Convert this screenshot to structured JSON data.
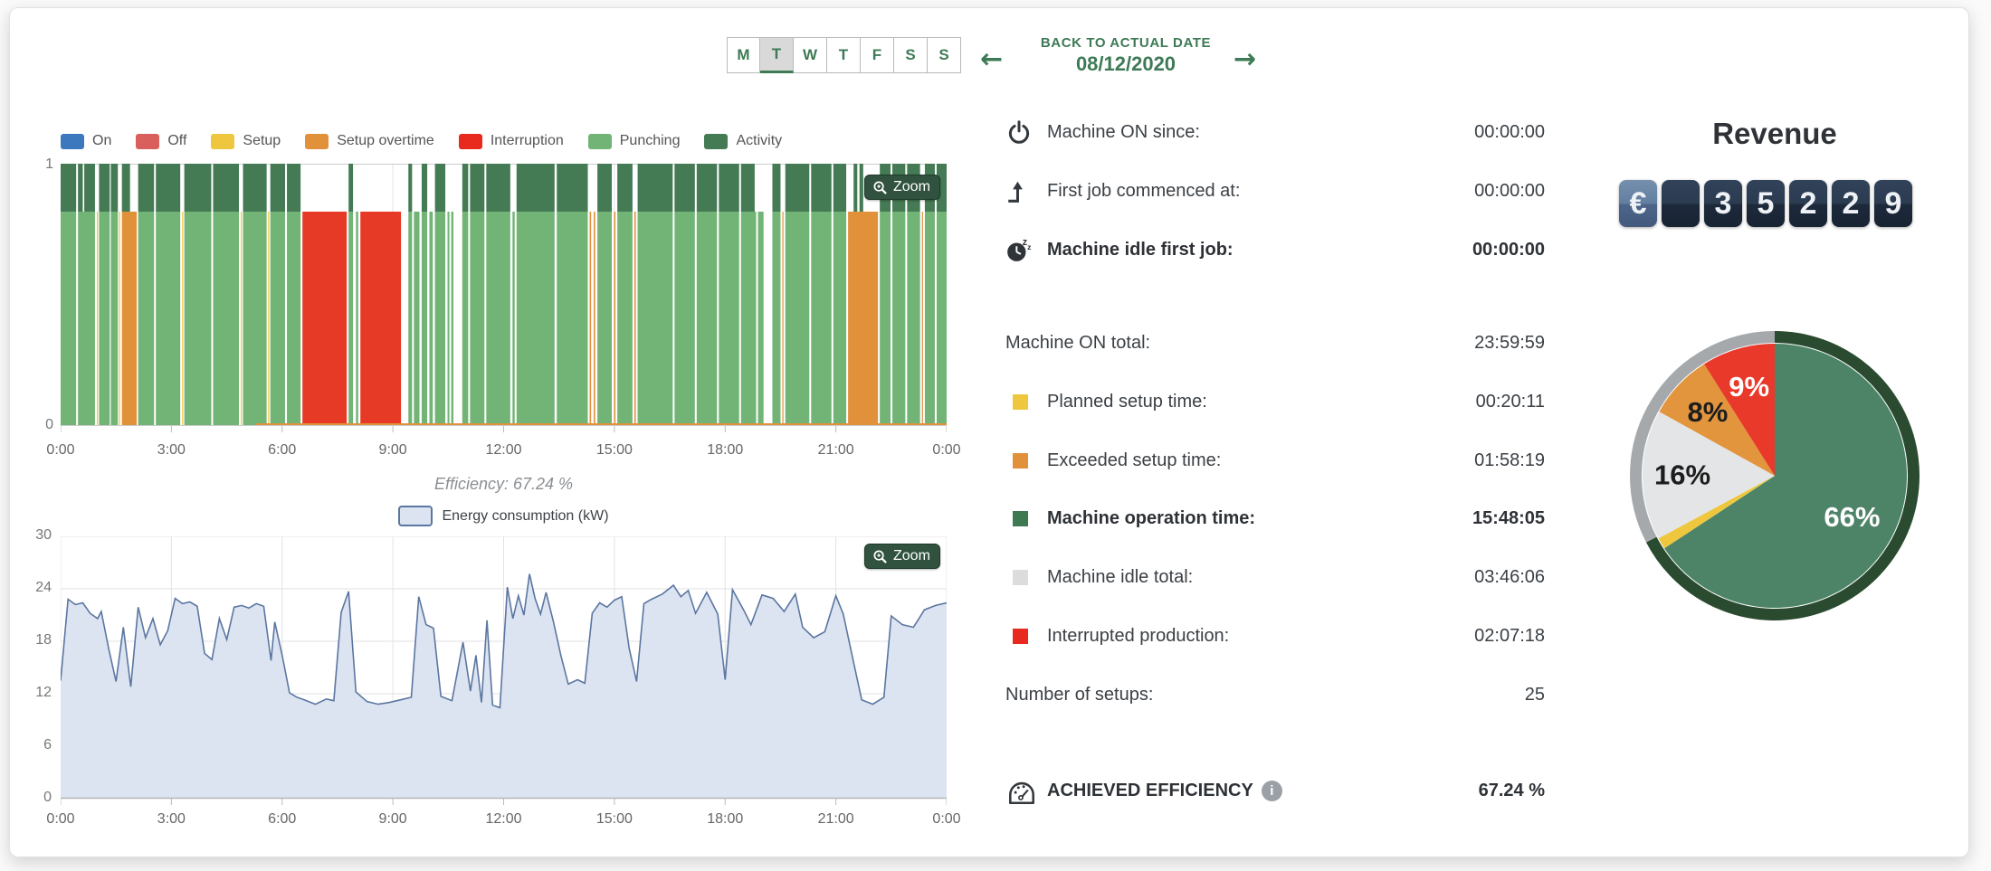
{
  "header": {
    "days": [
      "M",
      "T",
      "W",
      "T",
      "F",
      "S",
      "S"
    ],
    "selected_day_index": 1,
    "back_label": "BACK TO ACTUAL DATE",
    "date": "08/12/2020",
    "prev_arrow": "←",
    "next_arrow": "→"
  },
  "stats": {
    "rows": [
      {
        "icon": "power",
        "label": "Machine ON since:",
        "value": "00:00:00",
        "bold": false
      },
      {
        "icon": "first-job",
        "label": "First job commenced at:",
        "value": "00:00:00",
        "bold": false
      },
      {
        "icon": "idle-clock",
        "label": "Machine idle first job:",
        "value": "00:00:00",
        "bold": true
      },
      {
        "label": "Machine ON total:",
        "value": "23:59:59",
        "bold": false
      },
      {
        "swatch": "#eec73e",
        "label": "Planned setup time:",
        "value": "00:20:11",
        "bold": false
      },
      {
        "swatch": "#e2913b",
        "label": "Exceeded setup time:",
        "value": "01:58:19",
        "bold": false
      },
      {
        "swatch": "#3d7a52",
        "label": "Machine operation time:",
        "value": "15:48:05",
        "bold": true
      },
      {
        "swatch": "#dcdcdc",
        "label": "Machine idle total:",
        "value": "03:46:06",
        "bold": false
      },
      {
        "swatch": "#e8291d",
        "label": "Interrupted production:",
        "value": "02:07:18",
        "bold": false
      },
      {
        "label": "Number of setups:",
        "value": "25",
        "bold": false
      },
      {
        "icon": "gauge",
        "label": "ACHIEVED EFFICIENCY",
        "value": "67.24 %",
        "bold": true,
        "info": true
      }
    ]
  },
  "revenue": {
    "title": "Revenue",
    "tiles": [
      "€",
      "",
      "3",
      "5",
      "2",
      "2",
      "9"
    ]
  },
  "chart_data": [
    {
      "type": "timeline",
      "name": "machine-activity-timeline",
      "y_labels": [
        "1",
        "0"
      ],
      "x_ticks": {
        "hours": [
          0,
          3,
          6,
          9,
          12,
          15,
          18,
          21,
          24
        ],
        "labels": [
          "0:00",
          "3:00",
          "6:00",
          "9:00",
          "12:00",
          "15:00",
          "18:00",
          "21:00",
          "0:00"
        ]
      },
      "legend": [
        {
          "name": "On",
          "color": "#3d78bf"
        },
        {
          "name": "Off",
          "color": "#d95f5c"
        },
        {
          "name": "Setup",
          "color": "#eec73e"
        },
        {
          "name": "Setup overtime",
          "color": "#e2913b"
        },
        {
          "name": "Interruption",
          "color": "#e8291d"
        },
        {
          "name": "Punching",
          "color": "#72b376"
        },
        {
          "name": "Activity",
          "color": "#447a54"
        }
      ],
      "palette": {
        "p": "#72b376",
        "y": "#eec73e",
        "o": "#e2913b",
        "r": "#e63a26",
        "activity": "#447a54"
      },
      "zoom_label": "Zoom",
      "efficiency_caption": "Efficiency: 67.24 %",
      "activity_segments": [
        [
          0.0,
          0.42
        ],
        [
          0.47,
          0.6
        ],
        [
          0.64,
          0.93
        ],
        [
          1.04,
          1.33
        ],
        [
          1.36,
          1.55
        ],
        [
          1.66,
          1.88
        ],
        [
          2.1,
          2.53
        ],
        [
          2.58,
          3.24
        ],
        [
          3.35,
          4.08
        ],
        [
          4.13,
          4.83
        ],
        [
          4.94,
          5.58
        ],
        [
          5.68,
          6.08
        ],
        [
          6.13,
          6.5
        ],
        [
          7.8,
          7.92
        ],
        [
          9.42,
          9.52
        ],
        [
          9.78,
          9.93
        ],
        [
          10.14,
          10.42
        ],
        [
          10.88,
          11.04
        ],
        [
          11.09,
          11.48
        ],
        [
          11.53,
          12.18
        ],
        [
          12.35,
          13.38
        ],
        [
          13.44,
          14.28
        ],
        [
          14.54,
          14.93
        ],
        [
          15.08,
          15.49
        ],
        [
          15.63,
          16.58
        ],
        [
          16.63,
          17.18
        ],
        [
          17.23,
          17.78
        ],
        [
          17.83,
          18.38
        ],
        [
          18.43,
          18.8
        ],
        [
          19.28,
          19.5
        ],
        [
          19.63,
          20.28
        ],
        [
          20.33,
          20.88
        ],
        [
          20.93,
          21.28
        ],
        [
          21.48,
          21.58
        ],
        [
          21.64,
          21.74
        ],
        [
          22.19,
          22.48
        ],
        [
          22.53,
          22.88
        ],
        [
          22.93,
          23.28
        ],
        [
          23.41,
          23.68
        ],
        [
          23.73,
          24.0
        ]
      ],
      "bars": [
        [
          0.0,
          0.42,
          "p"
        ],
        [
          0.47,
          0.93,
          "p"
        ],
        [
          0.98,
          1.01,
          "y"
        ],
        [
          1.04,
          1.33,
          "p"
        ],
        [
          1.36,
          1.55,
          "p"
        ],
        [
          1.58,
          1.61,
          "y"
        ],
        [
          1.66,
          2.06,
          "o"
        ],
        [
          2.1,
          2.53,
          "p"
        ],
        [
          2.58,
          3.24,
          "p"
        ],
        [
          3.29,
          3.31,
          "y"
        ],
        [
          3.35,
          4.08,
          "p"
        ],
        [
          4.13,
          4.83,
          "p"
        ],
        [
          4.88,
          4.9,
          "y"
        ],
        [
          4.94,
          5.58,
          "p"
        ],
        [
          5.62,
          5.64,
          "y"
        ],
        [
          5.68,
          6.08,
          "p"
        ],
        [
          6.13,
          6.5,
          "p"
        ],
        [
          6.55,
          7.75,
          "r"
        ],
        [
          7.8,
          7.92,
          "p"
        ],
        [
          8.0,
          8.06,
          "p"
        ],
        [
          8.12,
          9.22,
          "r"
        ],
        [
          9.42,
          9.52,
          "p"
        ],
        [
          9.57,
          9.72,
          "p"
        ],
        [
          9.78,
          9.93,
          "p"
        ],
        [
          9.99,
          10.08,
          "p"
        ],
        [
          10.14,
          10.42,
          "p"
        ],
        [
          10.48,
          10.53,
          "p"
        ],
        [
          10.58,
          10.64,
          "p"
        ],
        [
          10.88,
          11.04,
          "p"
        ],
        [
          11.09,
          11.48,
          "p"
        ],
        [
          11.53,
          12.18,
          "p"
        ],
        [
          12.24,
          12.3,
          "p"
        ],
        [
          12.35,
          13.38,
          "p"
        ],
        [
          13.44,
          14.28,
          "p"
        ],
        [
          14.33,
          14.37,
          "o"
        ],
        [
          14.44,
          14.48,
          "o"
        ],
        [
          14.54,
          14.93,
          "p"
        ],
        [
          14.99,
          15.03,
          "o"
        ],
        [
          15.08,
          15.49,
          "p"
        ],
        [
          15.54,
          15.58,
          "o"
        ],
        [
          15.63,
          16.58,
          "p"
        ],
        [
          16.63,
          17.18,
          "p"
        ],
        [
          17.23,
          17.78,
          "p"
        ],
        [
          17.83,
          18.38,
          "p"
        ],
        [
          18.43,
          18.84,
          "p"
        ],
        [
          18.89,
          19.04,
          "p"
        ],
        [
          19.28,
          19.5,
          "p"
        ],
        [
          19.55,
          19.58,
          "o"
        ],
        [
          19.63,
          20.28,
          "p"
        ],
        [
          20.33,
          20.88,
          "p"
        ],
        [
          20.93,
          21.28,
          "p"
        ],
        [
          21.33,
          22.14,
          "o"
        ],
        [
          22.19,
          22.48,
          "p"
        ],
        [
          22.53,
          22.88,
          "p"
        ],
        [
          22.93,
          23.28,
          "p"
        ],
        [
          23.33,
          23.36,
          "o"
        ],
        [
          23.41,
          23.68,
          "p"
        ],
        [
          23.73,
          24.0,
          "p"
        ]
      ],
      "overtime_baseline": [
        5.3,
        24.0
      ]
    },
    {
      "type": "area",
      "name": "energy-consumption",
      "legend_label": "Energy consumption (kW)",
      "ylim": [
        0,
        30
      ],
      "y_ticks": [
        30,
        24,
        18,
        12,
        6,
        0
      ],
      "x_ticks": {
        "hours": [
          0,
          3,
          6,
          9,
          12,
          15,
          18,
          21,
          24
        ],
        "labels": [
          "0:00",
          "3:00",
          "6:00",
          "9:00",
          "12:00",
          "15:00",
          "18:00",
          "21:00",
          "0:00"
        ]
      },
      "fill": "#dce4f2",
      "stroke": "#5b76a0",
      "zoom_label": "Zoom",
      "points": [
        [
          0,
          13.5
        ],
        [
          0.2,
          22.8
        ],
        [
          0.4,
          22.2
        ],
        [
          0.6,
          22.4
        ],
        [
          0.8,
          21.2
        ],
        [
          1.0,
          20.6
        ],
        [
          1.1,
          21.4
        ],
        [
          1.3,
          17.2
        ],
        [
          1.5,
          13.4
        ],
        [
          1.7,
          19.6
        ],
        [
          1.9,
          12.8
        ],
        [
          2.1,
          21.9
        ],
        [
          2.3,
          18.4
        ],
        [
          2.5,
          20.6
        ],
        [
          2.7,
          17.6
        ],
        [
          2.9,
          19.2
        ],
        [
          3.1,
          22.9
        ],
        [
          3.3,
          22.3
        ],
        [
          3.5,
          22.5
        ],
        [
          3.7,
          22.0
        ],
        [
          3.9,
          16.6
        ],
        [
          4.1,
          15.9
        ],
        [
          4.3,
          20.6
        ],
        [
          4.5,
          18.2
        ],
        [
          4.7,
          21.9
        ],
        [
          4.9,
          22.1
        ],
        [
          5.1,
          21.8
        ],
        [
          5.3,
          22.3
        ],
        [
          5.5,
          22.0
        ],
        [
          5.7,
          15.8
        ],
        [
          5.8,
          20.2
        ],
        [
          6.0,
          16.4
        ],
        [
          6.2,
          12.1
        ],
        [
          6.4,
          11.6
        ],
        [
          6.6,
          11.3
        ],
        [
          6.9,
          10.8
        ],
        [
          7.2,
          11.4
        ],
        [
          7.4,
          11.2
        ],
        [
          7.6,
          21.3
        ],
        [
          7.8,
          23.7
        ],
        [
          8.0,
          12.2
        ],
        [
          8.3,
          11.1
        ],
        [
          8.6,
          10.8
        ],
        [
          8.9,
          11.0
        ],
        [
          9.2,
          11.3
        ],
        [
          9.5,
          11.6
        ],
        [
          9.7,
          23.1
        ],
        [
          9.9,
          19.9
        ],
        [
          10.1,
          19.5
        ],
        [
          10.3,
          11.7
        ],
        [
          10.6,
          11.2
        ],
        [
          10.9,
          17.9
        ],
        [
          11.1,
          12.3
        ],
        [
          11.25,
          16.4
        ],
        [
          11.4,
          11.0
        ],
        [
          11.55,
          20.4
        ],
        [
          11.7,
          10.7
        ],
        [
          11.9,
          10.4
        ],
        [
          12.1,
          24.2
        ],
        [
          12.25,
          20.6
        ],
        [
          12.4,
          23.2
        ],
        [
          12.55,
          21.0
        ],
        [
          12.7,
          25.7
        ],
        [
          12.85,
          22.9
        ],
        [
          13.0,
          21.1
        ],
        [
          13.15,
          23.6
        ],
        [
          13.35,
          20.2
        ],
        [
          13.55,
          16.4
        ],
        [
          13.75,
          13.1
        ],
        [
          14.0,
          13.6
        ],
        [
          14.2,
          13.2
        ],
        [
          14.4,
          21.2
        ],
        [
          14.6,
          22.4
        ],
        [
          14.8,
          21.9
        ],
        [
          15.0,
          22.7
        ],
        [
          15.2,
          23.1
        ],
        [
          15.4,
          17.2
        ],
        [
          15.6,
          13.4
        ],
        [
          15.8,
          22.3
        ],
        [
          16.0,
          22.8
        ],
        [
          16.3,
          23.4
        ],
        [
          16.6,
          24.4
        ],
        [
          16.8,
          23.1
        ],
        [
          17.0,
          23.8
        ],
        [
          17.2,
          21.2
        ],
        [
          17.5,
          23.6
        ],
        [
          17.8,
          21.1
        ],
        [
          18.0,
          13.6
        ],
        [
          18.2,
          23.9
        ],
        [
          18.5,
          21.6
        ],
        [
          18.7,
          19.9
        ],
        [
          19.0,
          23.3
        ],
        [
          19.3,
          22.9
        ],
        [
          19.6,
          21.4
        ],
        [
          19.9,
          23.4
        ],
        [
          20.1,
          19.6
        ],
        [
          20.4,
          18.4
        ],
        [
          20.7,
          19.1
        ],
        [
          21.0,
          23.2
        ],
        [
          21.2,
          21.1
        ],
        [
          21.5,
          15.2
        ],
        [
          21.7,
          11.3
        ],
        [
          22.0,
          10.8
        ],
        [
          22.3,
          11.6
        ],
        [
          22.5,
          20.9
        ],
        [
          22.8,
          19.9
        ],
        [
          23.1,
          19.6
        ],
        [
          23.4,
          21.6
        ],
        [
          23.7,
          22.1
        ],
        [
          24,
          22.4
        ]
      ]
    },
    {
      "type": "pie",
      "name": "time-distribution",
      "slices": [
        {
          "label": "66%",
          "value": 66,
          "color": "#4d8468",
          "label_color": "#ffffff"
        },
        {
          "label": "",
          "value": 1.4,
          "color": "#eec73e",
          "label_color": "#1d1d1d"
        },
        {
          "label": "16%",
          "value": 16,
          "color": "#e4e5e7",
          "label_color": "#1d1d1d"
        },
        {
          "label": "8%",
          "value": 8,
          "color": "#e2953d",
          "label_color": "#1d1d1d"
        },
        {
          "label": "9%",
          "value": 9,
          "color": "#e8392b",
          "label_color": "#ffffff"
        }
      ],
      "ring": {
        "green": "#2a4b30",
        "gray": "#a6a9ac",
        "split_deg": 242.6
      }
    }
  ]
}
